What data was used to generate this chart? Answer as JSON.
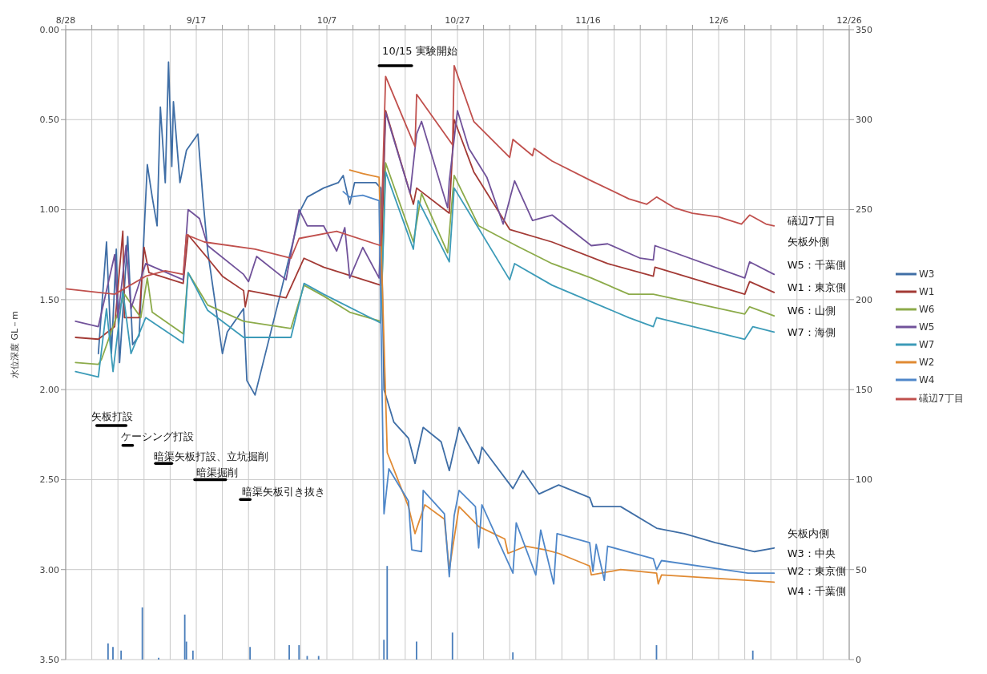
{
  "chart_data": {
    "type": "line",
    "ylabel": "水位深度 GL－m",
    "xlim": [
      "--08-28",
      "--12-26"
    ],
    "xticks": [
      {
        "value": "--08-28",
        "label": "8/28"
      },
      {
        "value": "--09-01",
        "label": null
      },
      {
        "value": "--09-05",
        "label": null
      },
      {
        "value": "--09-09",
        "label": null
      },
      {
        "value": "--09-13",
        "label": null
      },
      {
        "value": "--09-17",
        "label": "9/17"
      },
      {
        "value": "--09-21",
        "label": null
      },
      {
        "value": "--09-25",
        "label": null
      },
      {
        "value": "--09-29",
        "label": null
      },
      {
        "value": "--10-03",
        "label": null
      },
      {
        "value": "--10-07",
        "label": "10/7"
      },
      {
        "value": "--10-11",
        "label": null
      },
      {
        "value": "--10-15",
        "label": null
      },
      {
        "value": "--10-19",
        "label": null
      },
      {
        "value": "--10-23",
        "label": null
      },
      {
        "value": "--10-27",
        "label": "10/27"
      },
      {
        "value": "--10-31",
        "label": null
      },
      {
        "value": "--11-04",
        "label": null
      },
      {
        "value": "--11-08",
        "label": null
      },
      {
        "value": "--11-12",
        "label": null
      },
      {
        "value": "--11-16",
        "label": "11/16"
      },
      {
        "value": "--11-20",
        "label": null
      },
      {
        "value": "--11-24",
        "label": null
      },
      {
        "value": "--11-28",
        "label": null
      },
      {
        "value": "--12-02",
        "label": null
      },
      {
        "value": "--12-06",
        "label": "12/6"
      },
      {
        "value": "--12-10",
        "label": null
      },
      {
        "value": "--12-14",
        "label": null
      },
      {
        "value": "--12-18",
        "label": null
      },
      {
        "value": "--12-22",
        "label": null
      },
      {
        "value": "--12-26",
        "label": "12/26"
      }
    ],
    "ylim": [
      3.5,
      0
    ],
    "yticks": [
      {
        "value": 0,
        "label": "0.00"
      },
      {
        "value": 0.5,
        "label": "0.50"
      },
      {
        "value": 1,
        "label": "1.00"
      },
      {
        "value": 1.5,
        "label": "1.50"
      },
      {
        "value": 2,
        "label": "2.00"
      },
      {
        "value": 2.5,
        "label": "2.50"
      },
      {
        "value": 3,
        "label": "3.00"
      },
      {
        "value": 3.5,
        "label": "3.50"
      }
    ],
    "y2lim": [
      0,
      350
    ],
    "y2ticks": [
      0,
      50,
      100,
      150,
      200,
      250,
      300,
      350
    ],
    "grid": true,
    "legend": "right",
    "series": [
      {
        "name": "W3",
        "color": "#3f6ea6",
        "x": [
          "--09-02T00:00",
          "--09-03T06:00",
          "--09-04T00:00",
          "--09-04T18:00",
          "--09-05T06:00",
          "--09-06T12:00",
          "--09-07T06:00",
          "--09-08T06:00",
          "--09-09T12:00",
          "--09-10T06:00",
          "--09-11T00:00",
          "--09-11T12:00",
          "--09-12T06:00",
          "--09-12T18:00",
          "--09-13T06:00",
          "--09-13T12:00",
          "--09-14T12:00",
          "--09-15T12:00",
          "--09-17T06:00",
          "--09-18T00:00",
          "--09-18T18:00",
          "--09-21T00:00",
          "--09-21T18:00",
          "--09-24T06:00",
          "--09-24T18:00",
          "--09-26T00:00",
          "--09-30T00:00",
          "--10-03T00:00",
          "--10-04T00:00",
          "--10-06T12:00",
          "--10-08T18:00",
          "--10-09T12:00",
          "--10-10T12:00",
          "--10-11T06:00",
          "--10-14T12:00",
          "--10-15T06:00",
          "--10-15T18:00",
          "--10-17T06:00",
          "--10-19T12:00",
          "--10-20T12:00",
          "--10-21T18:00",
          "--10-24T12:00",
          "--10-25T18:00",
          "--10-27T06:00",
          "--10-30T06:00",
          "--10-30T18:00",
          "--11-04T12:00",
          "--11-06T00:00",
          "--11-08T12:00",
          "--11-11T12:00",
          "--11-16T06:00",
          "--11-16T18:00",
          "--11-21T00:00",
          "--11-26T12:00",
          "--11-30T18:00",
          "--12-05T12:00",
          "--12-11T12:00",
          "--12-14T12:00"
        ],
        "values": [
          1.8,
          1.18,
          1.8,
          1.22,
          1.85,
          1.15,
          1.75,
          1.7,
          0.75,
          0.93,
          1.09,
          0.43,
          0.85,
          0.18,
          0.76,
          0.4,
          0.85,
          0.67,
          0.58,
          0.93,
          1.23,
          1.8,
          1.68,
          1.55,
          1.95,
          2.03,
          1.45,
          1.0,
          0.93,
          0.88,
          0.85,
          0.81,
          0.97,
          0.85,
          0.85,
          0.88,
          2.0,
          2.18,
          2.27,
          2.41,
          2.21,
          2.29,
          2.45,
          2.21,
          2.41,
          2.32,
          2.55,
          2.45,
          2.58,
          2.53,
          2.6,
          2.65,
          2.65,
          2.77,
          2.8,
          2.85,
          2.9,
          2.88
        ]
      },
      {
        "name": "W1",
        "color": "#a33a35",
        "x": [
          "--08-29T12:00",
          "--09-02T00:00",
          "--09-04T12:00",
          "--09-05T18:00",
          "--09-06T00:00",
          "--09-08T06:00",
          "--09-09T00:00",
          "--09-09T18:00",
          "--09-15T00:00",
          "--09-15T18:00",
          "--09-18T18:00",
          "--09-21T00:00",
          "--09-24T06:00",
          "--09-24T12:00",
          "--09-25T00:00",
          "--09-30T18:00",
          "--10-03T12:00",
          "--10-06T12:00",
          "--10-15T06:00",
          "--10-16T00:00",
          "--10-20T06:00",
          "--10-20T18:00",
          "--10-25T18:00",
          "--10-26T12:00",
          "--10-29T12:00",
          "--11-04T00:00",
          "--11-10T12:00",
          "--11-19T00:00",
          "--11-26T00:00",
          "--11-26T06:00",
          "--12-10T00:00",
          "--12-10T18:00",
          "--12-14T12:00"
        ],
        "values": [
          1.71,
          1.72,
          1.65,
          1.12,
          1.6,
          1.6,
          1.21,
          1.35,
          1.41,
          1.14,
          1.27,
          1.37,
          1.45,
          1.54,
          1.45,
          1.49,
          1.27,
          1.32,
          1.42,
          0.45,
          0.97,
          0.88,
          1.02,
          0.5,
          0.79,
          1.11,
          1.18,
          1.3,
          1.37,
          1.32,
          1.47,
          1.4,
          1.46
        ]
      },
      {
        "name": "W6",
        "color": "#8cab4a",
        "x": [
          "--08-29T12:00",
          "--09-02T00:00",
          "--09-02T12:00",
          "--09-06T00:00",
          "--09-08T12:00",
          "--09-09T12:00",
          "--09-10T06:00",
          "--09-15T00:00",
          "--09-15T18:00",
          "--09-18T18:00",
          "--09-24T06:00",
          "--10-01T12:00",
          "--10-03T12:00",
          "--10-06T12:00",
          "--10-10T12:00",
          "--10-15T06:00",
          "--10-16T00:00",
          "--10-20T06:00",
          "--10-21T12:00",
          "--10-25T12:00",
          "--10-26T12:00",
          "--10-30T06:00",
          "--11-05T00:00",
          "--11-10T12:00",
          "--11-16T12:00",
          "--11-22T06:00",
          "--11-26T00:00",
          "--12-10T00:00",
          "--12-10T18:00",
          "--12-14T12:00"
        ],
        "values": [
          1.85,
          1.86,
          1.83,
          1.47,
          1.6,
          1.38,
          1.57,
          1.69,
          1.35,
          1.53,
          1.62,
          1.66,
          1.42,
          1.48,
          1.57,
          1.62,
          0.74,
          1.18,
          0.91,
          1.24,
          0.81,
          1.09,
          1.2,
          1.3,
          1.38,
          1.47,
          1.47,
          1.58,
          1.54,
          1.59
        ]
      },
      {
        "name": "W5",
        "color": "#71529a",
        "x": [
          "--08-29T12:00",
          "--09-02T00:00",
          "--09-04T12:00",
          "--09-05T00:00",
          "--09-06T06:00",
          "--09-07T00:00",
          "--09-09T06:00",
          "--09-15T00:00",
          "--09-15T18:00",
          "--09-17T12:00",
          "--09-18T18:00",
          "--09-24T06:00",
          "--09-25T00:00",
          "--09-26T06:00",
          "--09-30T18:00",
          "--10-02T18:00",
          "--10-04T00:00",
          "--10-06T12:00",
          "--10-08T12:00",
          "--10-09T18:00",
          "--10-10T12:00",
          "--10-12T12:00",
          "--10-15T00:00",
          "--10-16T00:00",
          "--10-19T18:00",
          "--10-20T18:00",
          "--10-21T12:00",
          "--10-22T18:00",
          "--10-25T12:00",
          "--10-25T18:00",
          "--10-27T00:00",
          "--10-28T18:00",
          "--10-31T12:00",
          "--11-03T00:00",
          "--11-04T18:00",
          "--11-07T12:00",
          "--11-10T12:00",
          "--11-16T12:00",
          "--11-19T00:00",
          "--11-24T00:00",
          "--11-26T00:00",
          "--11-26T06:00",
          "--12-10T00:00",
          "--12-10T18:00",
          "--12-14T12:00"
        ],
        "values": [
          1.62,
          1.65,
          1.25,
          1.6,
          1.2,
          1.55,
          1.3,
          1.39,
          1.0,
          1.05,
          1.2,
          1.36,
          1.4,
          1.26,
          1.39,
          1.0,
          1.09,
          1.09,
          1.23,
          1.1,
          1.38,
          1.21,
          1.38,
          0.46,
          0.91,
          0.58,
          0.51,
          0.66,
          0.99,
          0.84,
          0.45,
          0.66,
          0.82,
          1.08,
          0.84,
          1.06,
          1.03,
          1.2,
          1.19,
          1.27,
          1.28,
          1.2,
          1.38,
          1.29,
          1.36
        ]
      },
      {
        "name": "W7",
        "color": "#3c9bb8",
        "x": [
          "--08-29T12:00",
          "--09-02T00:00",
          "--09-03T06:00",
          "--09-04T06:00",
          "--09-05T18:00",
          "--09-07T00:00",
          "--09-09T06:00",
          "--09-15T00:00",
          "--09-15T18:00",
          "--09-18T18:00",
          "--09-24T06:00",
          "--10-01T12:00",
          "--10-03T12:00",
          "--10-06T12:00",
          "--10-15T06:00",
          "--10-16T00:00",
          "--10-20T06:00",
          "--10-21T00:00",
          "--10-25T18:00",
          "--10-26T12:00",
          "--11-04T00:00",
          "--11-04T18:00",
          "--11-10T12:00",
          "--11-22T06:00",
          "--11-26T00:00",
          "--11-26T12:00",
          "--12-10T00:00",
          "--12-11T06:00",
          "--12-14T12:00"
        ],
        "values": [
          1.9,
          1.93,
          1.55,
          1.9,
          1.45,
          1.8,
          1.6,
          1.74,
          1.35,
          1.56,
          1.71,
          1.71,
          1.41,
          1.47,
          1.63,
          0.79,
          1.22,
          0.95,
          1.29,
          0.88,
          1.39,
          1.3,
          1.42,
          1.6,
          1.65,
          1.6,
          1.72,
          1.65,
          1.68
        ]
      },
      {
        "name": "W2",
        "color": "#e08a33",
        "x": [
          "--10-10T12:00",
          "--10-12T12:00",
          "--10-15T00:00",
          "--10-16T06:00",
          "--10-19T12:00",
          "--10-20T12:00",
          "--10-22T00:00",
          "--10-25T00:00",
          "--10-25T18:00",
          "--10-27T06:00",
          "--10-30T06:00",
          "--11-03T06:00",
          "--11-03T18:00",
          "--11-06T12:00",
          "--11-09T12:00",
          "--11-11T12:00",
          "--11-16T06:00",
          "--11-16T12:00",
          "--11-21T00:00",
          "--11-26T12:00",
          "--11-26T18:00",
          "--11-27T06:00",
          "--12-10T12:00",
          "--12-14T12:00"
        ],
        "values": [
          0.78,
          0.8,
          0.82,
          2.35,
          2.65,
          2.8,
          2.64,
          2.72,
          3.0,
          2.65,
          2.76,
          2.83,
          2.91,
          2.87,
          2.89,
          2.91,
          2.98,
          3.03,
          3.0,
          3.02,
          3.08,
          3.03,
          3.06,
          3.07
        ]
      },
      {
        "name": "W4",
        "color": "#4f87c9",
        "x": [
          "--10-09T12:00",
          "--10-10T12:00",
          "--10-12T12:00",
          "--10-15T00:00",
          "--10-15T18:00",
          "--10-16T12:00",
          "--10-19T12:00",
          "--10-20T00:00",
          "--10-21T12:00",
          "--10-21T18:00",
          "--10-25T00:00",
          "--10-25T18:00",
          "--10-26T12:00",
          "--10-27T06:00",
          "--10-29T18:00",
          "--10-30T06:00",
          "--10-30T18:00",
          "--11-04T12:00",
          "--11-05T00:00",
          "--11-08T00:00",
          "--11-08T18:00",
          "--11-10T18:00",
          "--11-11T06:00",
          "--11-16T06:00",
          "--11-16T18:00",
          "--11-17T06:00",
          "--11-18T12:00",
          "--11-19T00:00",
          "--11-26T00:00",
          "--11-26T12:00",
          "--11-27T06:00",
          "--12-10T12:00",
          "--12-14T12:00"
        ],
        "values": [
          0.9,
          0.93,
          0.92,
          0.95,
          2.69,
          2.44,
          2.62,
          2.89,
          2.9,
          2.56,
          2.69,
          3.04,
          2.7,
          2.56,
          2.65,
          2.88,
          2.64,
          3.02,
          2.74,
          3.03,
          2.78,
          3.08,
          2.8,
          2.85,
          3.01,
          2.86,
          3.06,
          2.87,
          2.94,
          3.0,
          2.95,
          3.02,
          3.02
        ]
      },
      {
        "name": "礒辺7丁目",
        "color": "#c0504d",
        "x": [
          "--08-28T00:00",
          "--09-02T00:00",
          "--09-04T12:00",
          "--09-09T06:00",
          "--09-12T06:00",
          "--09-15T00:00",
          "--09-15T12:00",
          "--09-18T06:00",
          "--09-26T00:00",
          "--10-01T12:00",
          "--10-02T18:00",
          "--10-08T12:00",
          "--10-15T06:00",
          "--10-16T00:00",
          "--10-20T12:00",
          "--10-20T18:00",
          "--10-26T06:00",
          "--10-26T12:00",
          "--10-29T12:00",
          "--11-04T00:00",
          "--11-04T12:00",
          "--11-07T12:00",
          "--11-07T18:00",
          "--11-10T12:00",
          "--11-16T12:00",
          "--11-22T06:00",
          "--11-25T00:00",
          "--11-26T12:00",
          "--11-29T06:00",
          "--12-02T00:00",
          "--12-06T00:00",
          "--12-09T12:00",
          "--12-10T18:00",
          "--12-13T06:00",
          "--12-14T12:00"
        ],
        "values": [
          1.44,
          1.46,
          1.47,
          1.37,
          1.34,
          1.36,
          1.14,
          1.18,
          1.22,
          1.27,
          1.16,
          1.12,
          1.2,
          0.26,
          0.65,
          0.36,
          0.64,
          0.2,
          0.51,
          0.71,
          0.61,
          0.7,
          0.66,
          0.73,
          0.84,
          0.94,
          0.97,
          0.93,
          0.99,
          1.02,
          1.04,
          1.08,
          1.03,
          1.08,
          1.09
        ]
      },
      {
        "type": "bar",
        "axis": "y2",
        "color": "#4a7ebb",
        "x": [
          "--09-03T12:00",
          "--09-04T06:00",
          "--09-05T12:00",
          "--09-08T18:00",
          "--09-11T06:00",
          "--09-15T06:00",
          "--09-15T12:00",
          "--09-16T12:00",
          "--09-25T06:00",
          "--10-01T06:00",
          "--10-02T18:00",
          "--10-04T00:00",
          "--10-05T18:00",
          "--10-15T18:00",
          "--10-16T06:00",
          "--10-20T18:00",
          "--10-26T06:00",
          "--11-04T12:00",
          "--11-26T12:00",
          "--12-11T06:00"
        ],
        "values": [
          9,
          7,
          5,
          29,
          1,
          25,
          10,
          5,
          7,
          8,
          8,
          2,
          2,
          11,
          52,
          10,
          15,
          4,
          8,
          5
        ]
      },
      {
        "type": "line",
        "color": "#000000",
        "x": [
          "--09-01T18:00",
          "--09-06T06:00"
        ],
        "values": [
          2.2,
          2.2
        ]
      },
      {
        "type": "line",
        "color": "#000000",
        "x": [
          "--09-05T18:00",
          "--09-07T06:00"
        ],
        "values": [
          2.31,
          2.31
        ]
      },
      {
        "type": "line",
        "color": "#000000",
        "x": [
          "--09-10T18:00",
          "--09-13T06:00"
        ],
        "values": [
          2.41,
          2.41
        ]
      },
      {
        "type": "line",
        "color": "#000000",
        "x": [
          "--09-16T18:00",
          "--09-21T12:00"
        ],
        "values": [
          2.5,
          2.5
        ]
      },
      {
        "type": "line",
        "color": "#000000",
        "x": [
          "--09-23T18:00",
          "--09-25T06:00"
        ],
        "values": [
          2.61,
          2.61
        ]
      },
      {
        "type": "line",
        "color": "#000000",
        "x": [
          "--10-15T00:00",
          "--10-20T00:00"
        ],
        "values": [
          0.2,
          0.2
        ]
      }
    ],
    "annotations": [
      "10/15  実験開始",
      "矢板打設",
      "ケーシング打設",
      "暗渠矢板打設、立坑掘削",
      "暗渠掘削",
      "暗渠矢板引き抜き",
      "礒辺7丁目",
      "矢板外側",
      "W5：千葉側",
      "W1：東京側",
      "W6：山側",
      "W7：海側",
      "矢板内側",
      "W3：中央",
      "W2：東京側",
      "W4：千葉側"
    ]
  }
}
